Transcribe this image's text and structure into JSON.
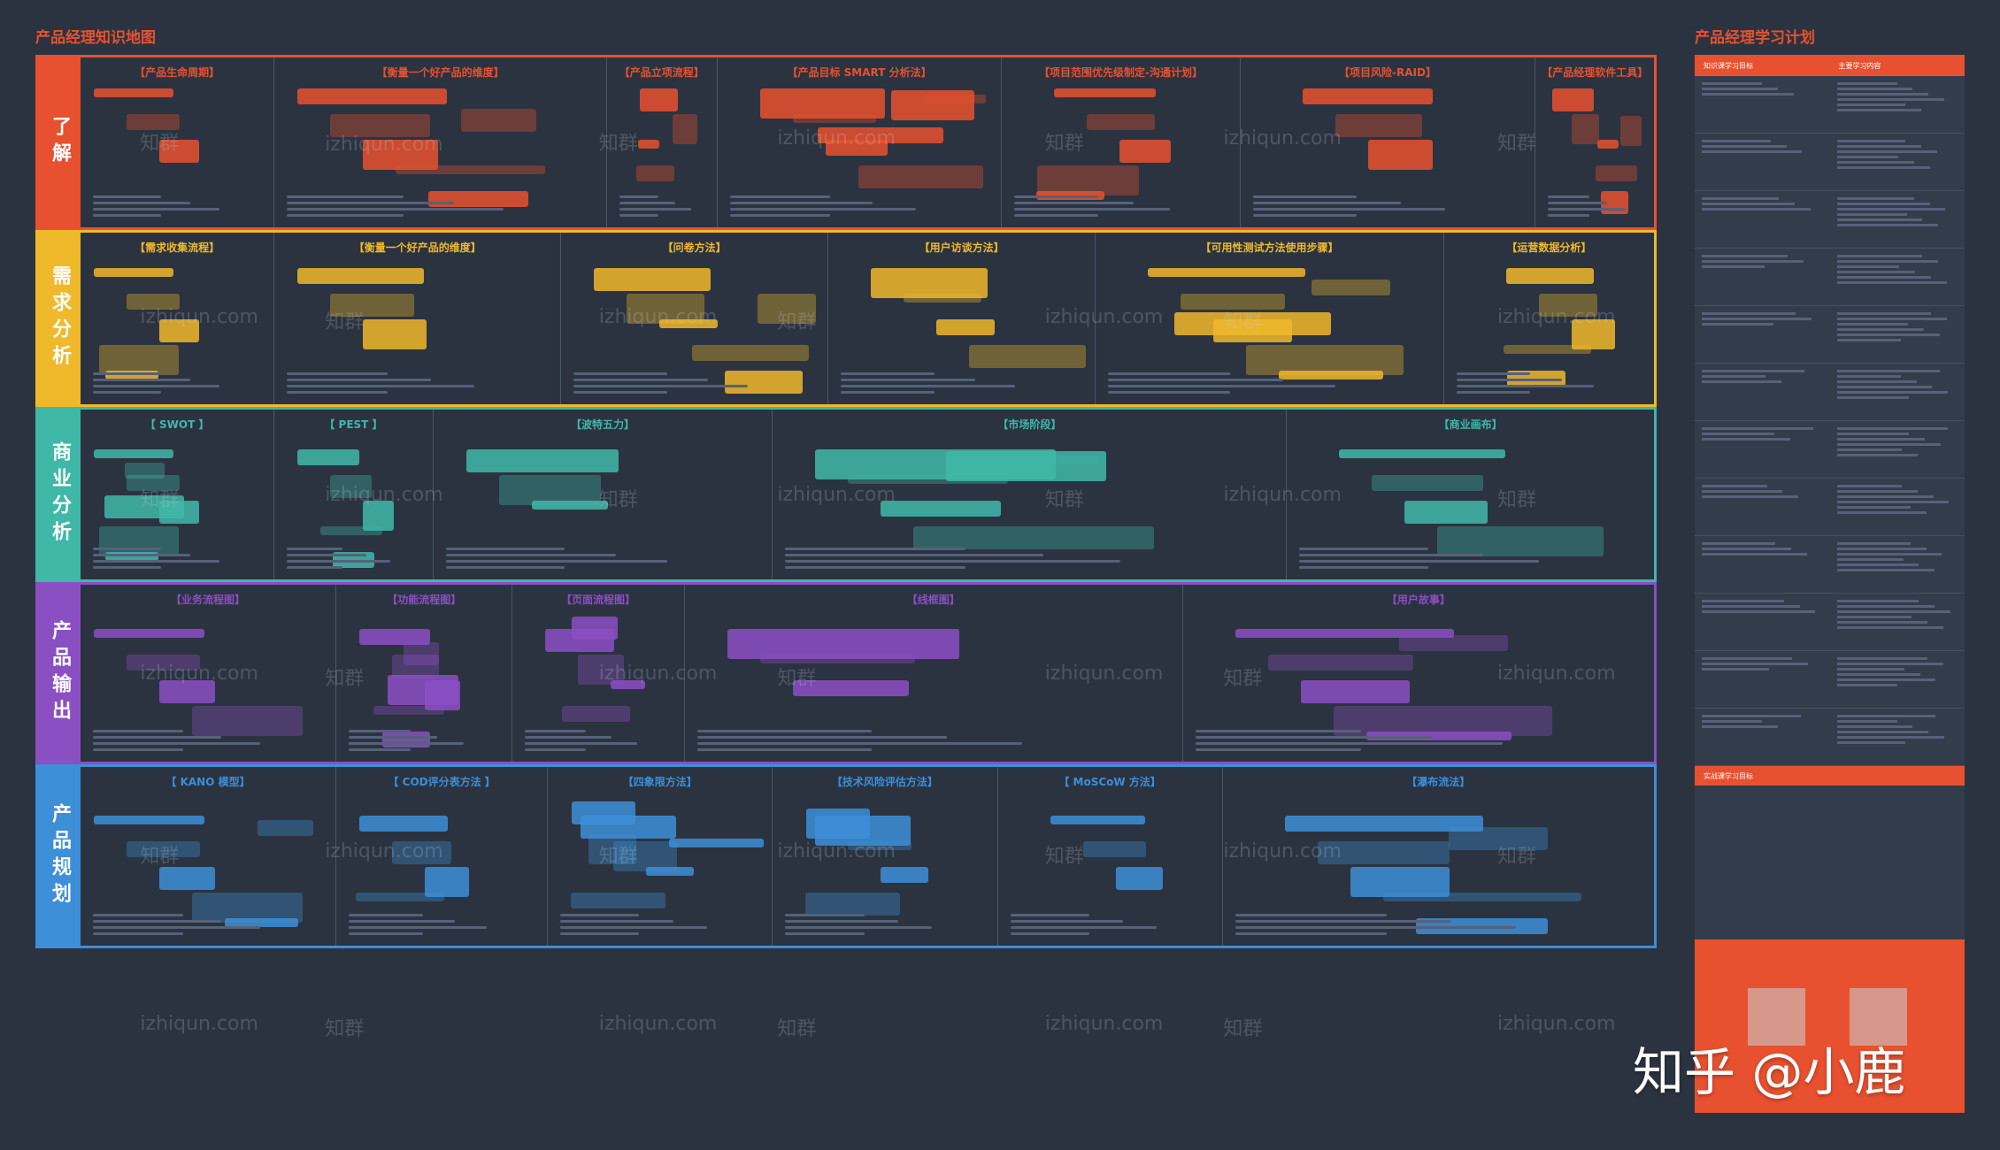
{
  "header": {
    "title": "产品经理知识地图",
    "plan_title": "产品经理学习计划"
  },
  "rows": [
    {
      "label": "了解",
      "color": "#e8512f",
      "cells": [
        {
          "title": "【产品生命周期】",
          "width": 220
        },
        {
          "title": "【衡量一个好产品的维度】",
          "width": 377
        },
        {
          "title": "【产品立项流程】",
          "width": 125
        },
        {
          "title": "【产品目标 SMART 分析法】",
          "width": 323
        },
        {
          "title": "【项目范围优先级制定-沟通计划】",
          "width": 270
        },
        {
          "title": "【项目风险-RAID】",
          "width": 335
        },
        {
          "title": "【产品经理软件工具】",
          "width": 134
        }
      ]
    },
    {
      "label": "需求分析",
      "color": "#f0b92c",
      "cells": [
        {
          "title": "【需求收集流程】",
          "width": 220
        },
        {
          "title": "【衡量一个好产品的维度】",
          "width": 325
        },
        {
          "title": "【问卷方法】",
          "width": 303
        },
        {
          "title": "【用户访谈方法】",
          "width": 303
        },
        {
          "title": "【可用性测试方法使用步骤】",
          "width": 395
        },
        {
          "title": "【运营数据分析】",
          "width": 238
        }
      ]
    },
    {
      "label": "商业分析",
      "color": "#3fb8a8",
      "cells": [
        {
          "title": "【 SWOT 】",
          "width": 220
        },
        {
          "title": "【 PEST 】",
          "width": 180
        },
        {
          "title": "【波特五力】",
          "width": 385
        },
        {
          "title": "【市场阶段】",
          "width": 583
        },
        {
          "title": "【商业画布】",
          "width": 416
        }
      ]
    },
    {
      "label": "产品输出",
      "color": "#8b4fc4",
      "cells": [
        {
          "title": "【业务流程图】",
          "width": 290
        },
        {
          "title": "【功能流程图】",
          "width": 200
        },
        {
          "title": "【页面流程图】",
          "width": 195
        },
        {
          "title": "【线框图】",
          "width": 565
        },
        {
          "title": "【用户故事】",
          "width": 534
        }
      ]
    },
    {
      "label": "产品规划",
      "color": "#3d8fd8",
      "cells": [
        {
          "title": "【 KANO 模型】",
          "width": 290
        },
        {
          "title": "【 COD评分表方法 】",
          "width": 240
        },
        {
          "title": "【四象限方法】",
          "width": 255
        },
        {
          "title": "【技术风险评估方法】",
          "width": 255
        },
        {
          "title": "【 MoSCoW 方法】",
          "width": 255
        },
        {
          "title": "【瀑布流法】",
          "width": 489
        }
      ]
    }
  ],
  "watermarks": [
    "知群",
    "izhiqun.com"
  ],
  "plan": {
    "col1": "知识课学习目标",
    "col2": "主要学习内容",
    "quick_title": "实战课学习目标"
  },
  "brand": "知乎 @小鹿"
}
